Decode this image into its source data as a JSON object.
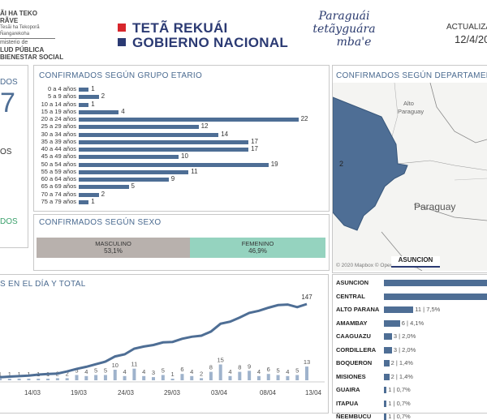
{
  "header": {
    "ministry_lines": [
      "ÃI HA TEKO",
      "RÃVE",
      "Tesãi ha Tekoporã Ñangarekoha",
      "misterio de",
      "LUD PÚBLICA",
      "BIENESTAR SOCIAL"
    ],
    "gov_line1": "TETÃ REKUÁI",
    "gov_line2": "GOBIERNO NACIONAL",
    "script_lines": [
      "Paraguái",
      "tetãyguára",
      "mba'e"
    ],
    "updated_label": "ACTUALIZA",
    "updated_date": "12/4/20",
    "colors": {
      "red": "#d7262c",
      "navy": "#2b3a73",
      "accent": "#4e6e95",
      "green": "#3aa06b"
    }
  },
  "left_panel": {
    "label_top": "DOS",
    "big_value": "7",
    "mid_label": "OS",
    "green_label": "DOS"
  },
  "age_chart": {
    "title": "CONFIRMADOS SEGÚN GRUPO ETARIO",
    "chart_data": {
      "type": "bar",
      "orientation": "horizontal",
      "categories": [
        "0 a 4 años",
        "5 a 9 años",
        "10 a 14 años",
        "15 a 19 años",
        "20 a 24 años",
        "25 a 29 años",
        "30 a 34 años",
        "35 a 39 años",
        "40 a 44 años",
        "45 a 49 años",
        "50 a 54 años",
        "55 a 59 años",
        "60 a 64 años",
        "65 a 69 años",
        "70 a 74 años",
        "75 a 79 años"
      ],
      "values": [
        1,
        2,
        1,
        4,
        22,
        12,
        14,
        17,
        17,
        10,
        19,
        11,
        9,
        5,
        2,
        1
      ]
    }
  },
  "sex_chart": {
    "title": "CONFIRMADOS SEGÚN SEXO",
    "chart_data": {
      "type": "bar",
      "stacked": true,
      "categories": [
        "MASCULINO",
        "FEMENINO"
      ],
      "values": [
        53.1,
        46.9
      ],
      "labels": [
        "53,1%",
        "46,9%"
      ],
      "colors": [
        "#b8b1ad",
        "#95d3bf"
      ]
    }
  },
  "map": {
    "title": "CONFIRMADOS SEGÚN DEPARTAMENTO",
    "label_alto": "Alto Paraguay",
    "label_paraguay": "Paraguay",
    "count_label": "2",
    "attribution": "© 2020 Mapbox © OpenStreetMap",
    "asuncion_tab": "ASUNCION"
  },
  "dept_chart": {
    "chart_data": {
      "type": "bar",
      "orientation": "horizontal",
      "categories": [
        "ASUNCION",
        "CENTRAL",
        "ALTO PARANA",
        "AMAMBAY",
        "CAAGUAZU",
        "CORDILLERA",
        "BOQUERON",
        "MISIONES",
        "GUAIRA",
        "ITAPUA",
        "ÑEEMBUCU"
      ],
      "values": [
        null,
        null,
        11,
        6,
        3,
        3,
        2,
        2,
        1,
        1,
        1
      ],
      "labels": [
        "",
        "",
        "11 | 7,5%",
        "6 | 4,1%",
        "3 | 2,0%",
        "3 | 2,0%",
        "2 | 1,4%",
        "2 | 1,4%",
        "1 | 0,7%",
        "1 | 0,7%",
        "1 | 0,7%"
      ]
    }
  },
  "daily_chart": {
    "title": "S EN EL DÍA Y TOTAL",
    "chart_data": {
      "type": "line",
      "x": [
        "11/03",
        "12/03",
        "13/03",
        "14/03",
        "15/03",
        "16/03",
        "17/03",
        "18/03",
        "19/03",
        "20/03",
        "21/03",
        "22/03",
        "23/03",
        "24/03",
        "25/03",
        "26/03",
        "27/03",
        "28/03",
        "29/03",
        "30/03",
        "31/03",
        "01/04",
        "02/04",
        "03/04",
        "04/04",
        "05/04",
        "06/04",
        "07/04",
        "08/04",
        "09/04",
        "10/04",
        "11/04",
        "12/04"
      ],
      "x_ticks": [
        "14/03",
        "19/03",
        "24/03",
        "29/03",
        "03/04",
        "08/04",
        "13/04"
      ],
      "series": [
        {
          "values": [
            1,
            1,
            1,
            1,
            1,
            1,
            2,
            2,
            5,
            4,
            5,
            5,
            10,
            4,
            11,
            4,
            3,
            5,
            1,
            6,
            4,
            2,
            8,
            15,
            4,
            8,
            9,
            4,
            6,
            5,
            4,
            5,
            13
          ]
        },
        {
          "values": [
            6,
            7,
            8,
            9,
            11,
            12,
            13,
            17,
            22,
            26,
            31,
            36,
            46,
            50,
            61,
            65,
            68,
            73,
            74,
            80,
            84,
            86,
            94,
            109,
            113,
            121,
            130,
            134,
            140,
            145,
            146,
            141,
            147
          ]
        }
      ],
      "end_label": "147"
    }
  }
}
